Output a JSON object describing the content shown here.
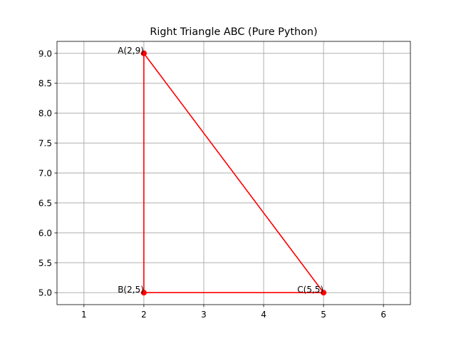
{
  "chart_data": {
    "type": "line",
    "title": "Right Triangle ABC (Pure Python)",
    "xlabel": "",
    "ylabel": "",
    "xlim": [
      0.55,
      6.45
    ],
    "ylim": [
      4.8,
      9.2
    ],
    "xticks": [
      1,
      2,
      3,
      4,
      5,
      6
    ],
    "xtick_labels": [
      "1",
      "2",
      "3",
      "4",
      "5",
      "6"
    ],
    "yticks": [
      5.0,
      5.5,
      6.0,
      6.5,
      7.0,
      7.5,
      8.0,
      8.5,
      9.0
    ],
    "ytick_labels": [
      "5.0",
      "5.5",
      "6.0",
      "6.5",
      "7.0",
      "7.5",
      "8.0",
      "8.5",
      "9.0"
    ],
    "grid": true,
    "series": [
      {
        "color": "#ff0000",
        "marker": "circle",
        "x": [
          2,
          2,
          5,
          2
        ],
        "y": [
          9,
          5,
          5,
          9
        ]
      }
    ],
    "points": [
      {
        "label": "A(2,9)",
        "x": 2,
        "y": 9
      },
      {
        "label": "B(2,5)",
        "x": 2,
        "y": 5
      },
      {
        "label": "C(5,5)",
        "x": 5,
        "y": 5
      }
    ]
  }
}
